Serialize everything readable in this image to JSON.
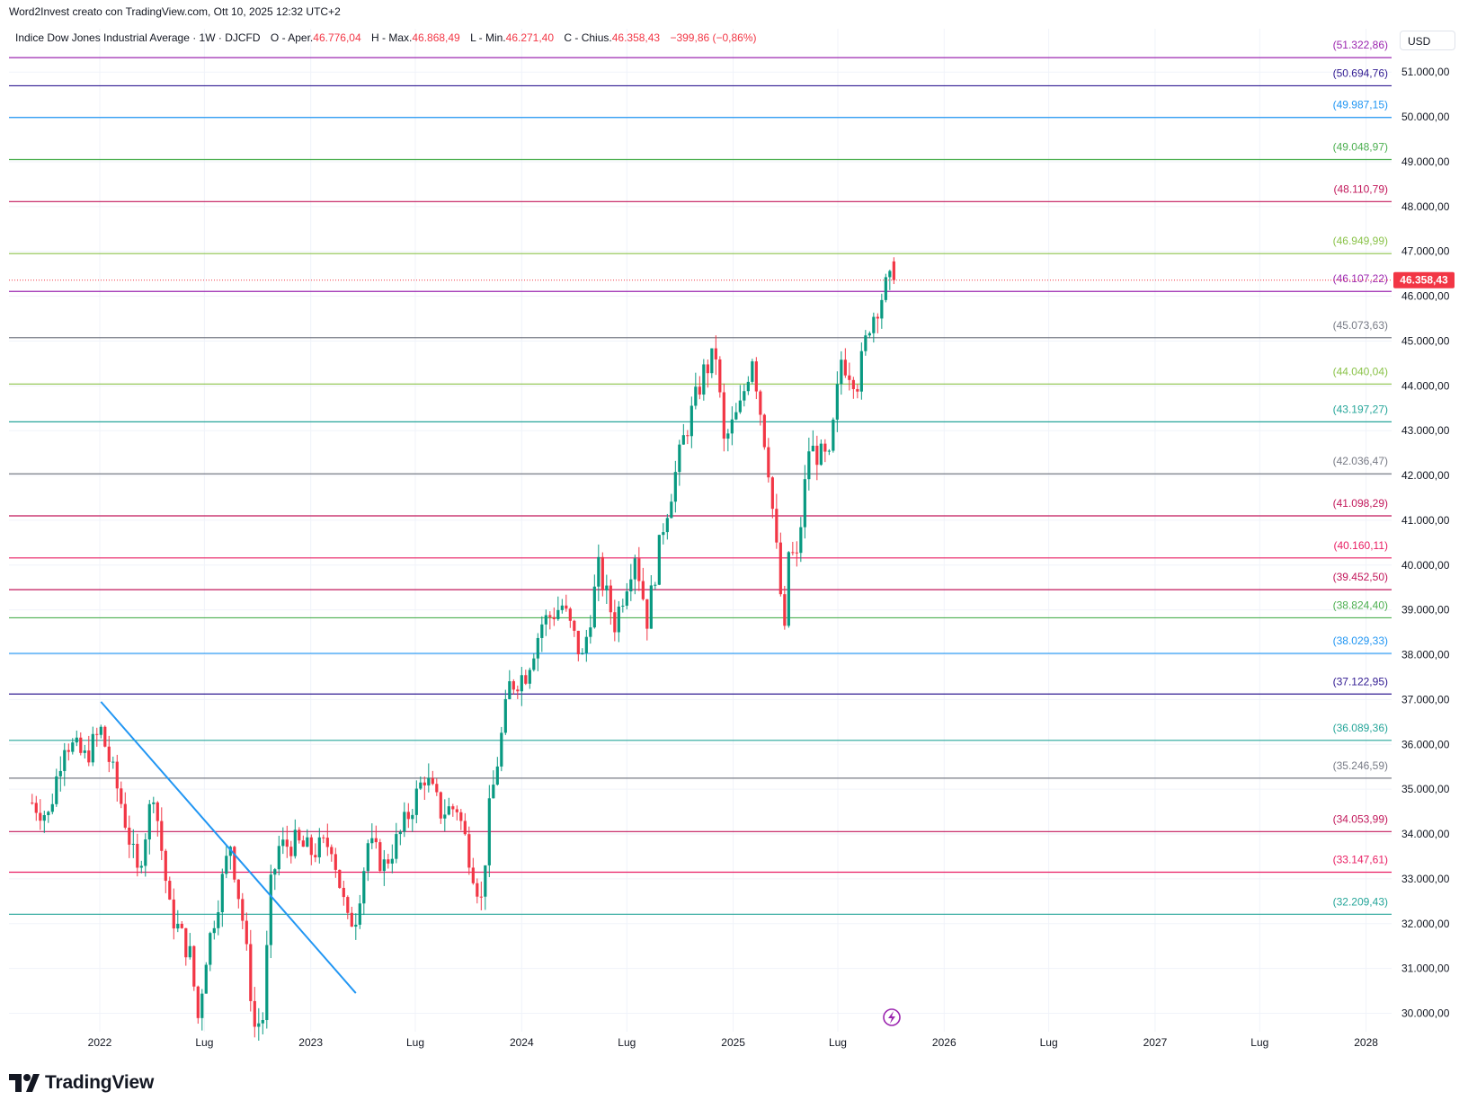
{
  "header": {
    "attribution": "Word2Invest creato con TradingView.com, Ott 10, 2025 12:32 UTC+2"
  },
  "legend": {
    "symbol": "Indice Dow Jones Industrial Average · 1W · DJCFD",
    "open_label": "O - Aper.",
    "open_value": "46.776,04",
    "high_label": "H - Max.",
    "high_value": "46.868,49",
    "low_label": "L - Min.",
    "low_value": "46.271,40",
    "close_label": "C - Chius.",
    "close_value": "46.358,43",
    "change_value": "−399,86 (−0,86%)"
  },
  "currency": "USD",
  "brand": "TradingView",
  "colors": {
    "up": "#089981",
    "down": "#f23645",
    "trendline": "#2196f3",
    "price_tag": "#f23645"
  },
  "chart_data": {
    "type": "candlestick",
    "interval": "1W",
    "y_axis_ticks": [
      "30.000,00",
      "31.000,00",
      "32.000,00",
      "33.000,00",
      "34.000,00",
      "35.000,00",
      "36.000,00",
      "37.000,00",
      "38.000,00",
      "39.000,00",
      "40.000,00",
      "41.000,00",
      "42.000,00",
      "43.000,00",
      "44.000,00",
      "45.000,00",
      "46.000,00",
      "47.000,00",
      "48.000,00",
      "49.000,00",
      "50.000,00",
      "51.000,00"
    ],
    "y_tick_values": [
      30000,
      31000,
      32000,
      33000,
      34000,
      35000,
      36000,
      37000,
      38000,
      39000,
      40000,
      41000,
      42000,
      43000,
      44000,
      45000,
      46000,
      47000,
      48000,
      49000,
      50000,
      51000
    ],
    "x_axis_labels": [
      "2022",
      "Lug",
      "2023",
      "Lug",
      "2024",
      "Lug",
      "2025",
      "Lug",
      "2026",
      "Lug",
      "2027",
      "Lug",
      "2028"
    ],
    "x_label_dates": [
      "2022-01-01",
      "2022-07-01",
      "2023-01-01",
      "2023-07-01",
      "2024-01-01",
      "2024-07-01",
      "2025-01-01",
      "2025-07-01",
      "2026-01-01",
      "2026-07-01",
      "2027-01-01",
      "2027-07-01",
      "2028-01-01"
    ],
    "current_price": {
      "value": 46358.43,
      "label": "46.358,43"
    },
    "horizontal_levels": [
      {
        "value": 51322.86,
        "label": "(51.322,86)",
        "color": "#9c27b0"
      },
      {
        "value": 50694.76,
        "label": "(50.694,76)",
        "color": "#311b92"
      },
      {
        "value": 49987.15,
        "label": "(49.987,15)",
        "color": "#2196f3"
      },
      {
        "value": 49048.97,
        "label": "(49.048,97)",
        "color": "#4caf50"
      },
      {
        "value": 48110.79,
        "label": "(48.110,79)",
        "color": "#c2185b"
      },
      {
        "value": 46949.99,
        "label": "(46.949,99)",
        "color": "#8bc34a"
      },
      {
        "value": 46107.22,
        "label": "(46.107,22)",
        "color": "#9c27b0"
      },
      {
        "value": 45073.63,
        "label": "(45.073,63)",
        "color": "#787b86"
      },
      {
        "value": 44040.04,
        "label": "(44.040,04)",
        "color": "#8bc34a"
      },
      {
        "value": 43197.27,
        "label": "(43.197,27)",
        "color": "#26a69a"
      },
      {
        "value": 42036.47,
        "label": "(42.036,47)",
        "color": "#787b86"
      },
      {
        "value": 41098.29,
        "label": "(41.098,29)",
        "color": "#c2185b"
      },
      {
        "value": 40160.11,
        "label": "(40.160,11)",
        "color": "#e91e63"
      },
      {
        "value": 39452.5,
        "label": "(39.452,50)",
        "color": "#c2185b"
      },
      {
        "value": 38824.4,
        "label": "(38.824,40)",
        "color": "#4caf50"
      },
      {
        "value": 38029.33,
        "label": "(38.029,33)",
        "color": "#2196f3"
      },
      {
        "value": 37122.95,
        "label": "(37.122,95)",
        "color": "#311b92"
      },
      {
        "value": 36089.36,
        "label": "(36.089,36)",
        "color": "#26a69a"
      },
      {
        "value": 35246.59,
        "label": "(35.246,59)",
        "color": "#787b86"
      },
      {
        "value": 34053.99,
        "label": "(34.053,99)",
        "color": "#c2185b"
      },
      {
        "value": 33147.61,
        "label": "(33.147,61)",
        "color": "#e91e63"
      },
      {
        "value": 32209.43,
        "label": "(32.209,43)",
        "color": "#26a69a"
      }
    ],
    "trendline": {
      "from": {
        "date": "2022-01-03",
        "value": 36950
      },
      "to": {
        "date": "2023-03-20",
        "value": 30450
      }
    },
    "series": [
      {
        "name": "DJCFD",
        "points": [
          [
            "2021-09-06",
            34700
          ],
          [
            "2021-10-04",
            34400
          ],
          [
            "2021-11-01",
            36100
          ],
          [
            "2021-12-06",
            35700
          ],
          [
            "2022-01-03",
            36300
          ],
          [
            "2022-02-07",
            34700
          ],
          [
            "2022-03-07",
            33100
          ],
          [
            "2022-04-04",
            35000
          ],
          [
            "2022-05-02",
            32300
          ],
          [
            "2022-06-06",
            31300
          ],
          [
            "2022-06-20",
            29900
          ],
          [
            "2022-07-04",
            31300
          ],
          [
            "2022-08-15",
            33800
          ],
          [
            "2022-09-05",
            32100
          ],
          [
            "2022-09-26",
            29700
          ],
          [
            "2022-10-10",
            29900
          ],
          [
            "2022-10-24",
            32800
          ],
          [
            "2022-11-07",
            33700
          ],
          [
            "2022-12-05",
            33800
          ],
          [
            "2023-01-02",
            33600
          ],
          [
            "2023-02-06",
            33800
          ],
          [
            "2023-03-06",
            32000
          ],
          [
            "2023-03-20",
            32200
          ],
          [
            "2023-04-10",
            33800
          ],
          [
            "2023-05-08",
            33300
          ],
          [
            "2023-06-05",
            34000
          ],
          [
            "2023-07-17",
            35300
          ],
          [
            "2023-08-14",
            34500
          ],
          [
            "2023-09-11",
            34600
          ],
          [
            "2023-10-23",
            32500
          ],
          [
            "2023-11-06",
            34500
          ],
          [
            "2023-12-11",
            37300
          ],
          [
            "2024-01-08",
            37600
          ],
          [
            "2024-02-05",
            38700
          ],
          [
            "2024-03-11",
            39100
          ],
          [
            "2024-04-15",
            37900
          ],
          [
            "2024-05-13",
            39900
          ],
          [
            "2024-06-10",
            38700
          ],
          [
            "2024-07-15",
            40300
          ],
          [
            "2024-08-05",
            38800
          ],
          [
            "2024-09-02",
            40900
          ],
          [
            "2024-10-07",
            42800
          ],
          [
            "2024-11-11",
            44300
          ],
          [
            "2024-12-02",
            44700
          ],
          [
            "2024-12-16",
            42700
          ],
          [
            "2025-01-13",
            43500
          ],
          [
            "2025-02-03",
            44700
          ],
          [
            "2025-03-03",
            42200
          ],
          [
            "2025-03-31",
            38400
          ],
          [
            "2025-04-07",
            40300
          ],
          [
            "2025-04-21",
            40100
          ],
          [
            "2025-05-12",
            42600
          ],
          [
            "2025-06-16",
            42300
          ],
          [
            "2025-07-07",
            44600
          ],
          [
            "2025-08-04",
            44100
          ],
          [
            "2025-08-25",
            45400
          ],
          [
            "2025-09-22",
            46200
          ],
          [
            "2025-10-06",
            46358.43
          ]
        ]
      }
    ]
  }
}
